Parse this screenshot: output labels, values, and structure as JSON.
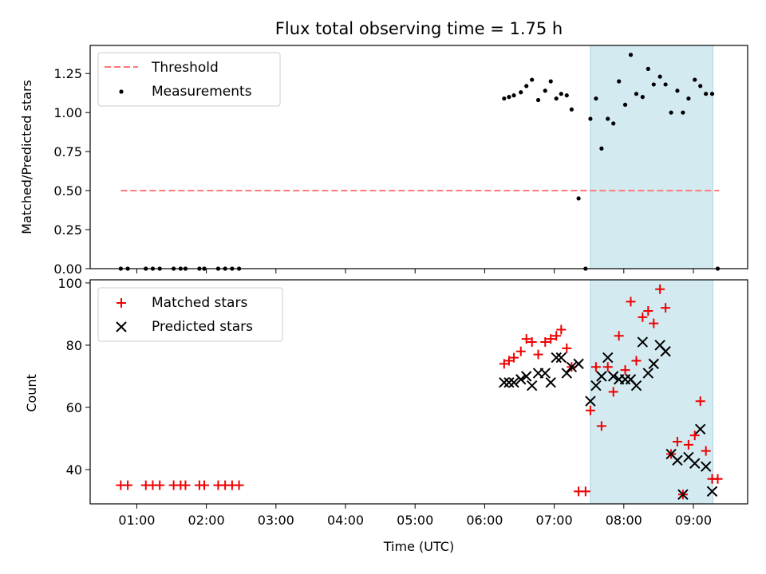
{
  "chart_data": [
    {
      "type": "scatter",
      "title": "Flux total observing time = 1.75 h",
      "xlabel": "",
      "ylabel": "Matched/Predicted stars",
      "x_unit": "hours UTC",
      "xlim": [
        0.33,
        9.78
      ],
      "ylim": [
        0,
        1.43
      ],
      "yticks": [
        "0.00",
        "0.25",
        "0.50",
        "0.75",
        "1.00",
        "1.25"
      ],
      "shaded_region": {
        "x_start": 7.52,
        "x_end": 9.28,
        "color": "#d4eaf1"
      },
      "legend": {
        "position": "top-left",
        "entries": [
          "Threshold",
          "Measurements"
        ]
      },
      "series": [
        {
          "name": "Threshold",
          "style": "dashed-line",
          "color": "#ff7777",
          "x": [
            0.77,
            9.37
          ],
          "y": [
            0.5,
            0.5
          ]
        },
        {
          "name": "Measurements",
          "style": "dot",
          "color": "#000000",
          "x": [
            0.77,
            0.87,
            1.13,
            1.23,
            1.33,
            1.53,
            1.63,
            1.7,
            1.9,
            1.97,
            2.17,
            2.27,
            2.37,
            2.47,
            6.28,
            6.35,
            6.42,
            6.52,
            6.6,
            6.68,
            6.77,
            6.87,
            6.95,
            7.03,
            7.1,
            7.18,
            7.25,
            7.35,
            7.45,
            7.52,
            7.6,
            7.68,
            7.77,
            7.85,
            7.93,
            8.02,
            8.1,
            8.18,
            8.27,
            8.35,
            8.43,
            8.52,
            8.6,
            8.68,
            8.77,
            8.85,
            8.93,
            9.02,
            9.1,
            9.18,
            9.27,
            9.35
          ],
          "y": [
            0,
            0,
            0,
            0,
            0,
            0,
            0,
            0,
            0,
            0,
            0,
            0,
            0,
            0,
            1.09,
            1.1,
            1.11,
            1.13,
            1.17,
            1.21,
            1.08,
            1.14,
            1.2,
            1.09,
            1.12,
            1.11,
            1.02,
            0.45,
            0,
            0.96,
            1.09,
            0.77,
            0.96,
            0.93,
            1.2,
            1.05,
            1.37,
            1.12,
            1.1,
            1.28,
            1.18,
            1.23,
            1.18,
            1.0,
            1.14,
            1.0,
            1.09,
            1.21,
            1.17,
            1.12,
            1.12,
            0
          ]
        }
      ]
    },
    {
      "type": "scatter",
      "title": "",
      "xlabel": "Time (UTC)",
      "ylabel": "Count",
      "x_unit": "hours UTC",
      "xlim": [
        0.33,
        9.78
      ],
      "ylim": [
        29,
        101
      ],
      "yticks": [
        "40",
        "60",
        "80",
        "100"
      ],
      "xticks": [
        "01:00",
        "02:00",
        "03:00",
        "04:00",
        "05:00",
        "06:00",
        "07:00",
        "08:00",
        "09:00"
      ],
      "shaded_region": {
        "x_start": 7.52,
        "x_end": 9.28,
        "color": "#d4eaf1"
      },
      "legend": {
        "position": "top-left",
        "entries": [
          "Matched stars",
          "Predicted stars"
        ]
      },
      "series": [
        {
          "name": "Matched stars",
          "marker": "plus",
          "color": "#ee0000",
          "x": [
            0.77,
            0.87,
            1.13,
            1.23,
            1.33,
            1.53,
            1.63,
            1.7,
            1.9,
            1.97,
            2.17,
            2.27,
            2.37,
            2.47,
            6.28,
            6.35,
            6.42,
            6.52,
            6.6,
            6.68,
            6.77,
            6.87,
            6.95,
            7.03,
            7.1,
            7.18,
            7.25,
            7.35,
            7.45,
            7.52,
            7.6,
            7.68,
            7.77,
            7.85,
            7.93,
            8.02,
            8.1,
            8.18,
            8.27,
            8.35,
            8.43,
            8.52,
            8.6,
            8.68,
            8.77,
            8.85,
            8.93,
            9.02,
            9.1,
            9.18,
            9.27,
            9.35
          ],
          "y": [
            35,
            35,
            35,
            35,
            35,
            35,
            35,
            35,
            35,
            35,
            35,
            35,
            35,
            35,
            74,
            75,
            76,
            78,
            82,
            81,
            77,
            81,
            82,
            83,
            85,
            79,
            73,
            33,
            33,
            59,
            73,
            54,
            73,
            65,
            83,
            72,
            94,
            75,
            89,
            91,
            87,
            98,
            92,
            45,
            49,
            32,
            48,
            51,
            62,
            46,
            37,
            37
          ]
        },
        {
          "name": "Predicted stars",
          "marker": "x",
          "color": "#000000",
          "x": [
            6.28,
            6.35,
            6.42,
            6.52,
            6.6,
            6.68,
            6.77,
            6.87,
            6.95,
            7.03,
            7.1,
            7.18,
            7.25,
            7.35,
            7.52,
            7.6,
            7.68,
            7.77,
            7.85,
            7.93,
            8.02,
            8.1,
            8.18,
            8.27,
            8.35,
            8.43,
            8.52,
            8.6,
            8.68,
            8.77,
            8.85,
            8.93,
            9.02,
            9.1,
            9.18,
            9.27
          ],
          "y": [
            68,
            68,
            68,
            69,
            70,
            67,
            71,
            71,
            68,
            76,
            76,
            71,
            73,
            74,
            62,
            67,
            70,
            76,
            70,
            69,
            69,
            69,
            67,
            81,
            71,
            74,
            80,
            78,
            45,
            43,
            32,
            44,
            42,
            53,
            41,
            33
          ]
        }
      ]
    }
  ]
}
